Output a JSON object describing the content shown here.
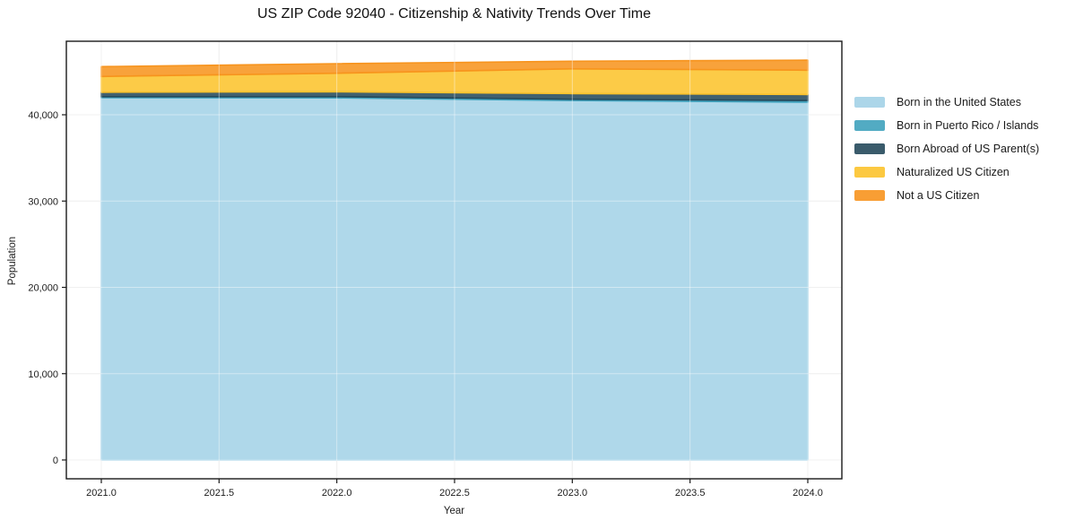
{
  "title": "US ZIP Code 92040 - Citizenship & Nativity Trends Over Time",
  "axes": {
    "xlabel": "Year",
    "ylabel": "Population",
    "xticks": {
      "values": [
        2021.0,
        2021.5,
        2022.0,
        2022.5,
        2023.0,
        2023.5,
        2024.0
      ],
      "labels": [
        "2021.0",
        "2021.5",
        "2022.0",
        "2022.5",
        "2023.0",
        "2023.5",
        "2024.0"
      ]
    },
    "yticks": {
      "values": [
        0,
        10000,
        20000,
        30000,
        40000
      ],
      "labels": [
        "0",
        "10,000",
        "20,000",
        "30,000",
        "40,000"
      ]
    }
  },
  "colors": {
    "grid": "#E1E1E1",
    "spine": "#1a1a1a",
    "tick_text": "#1c1c1c"
  },
  "chart_data": {
    "type": "area",
    "stacked": true,
    "title": "US ZIP Code 92040 - Citizenship & Nativity Trends Over Time",
    "xlabel": "Year",
    "ylabel": "Population",
    "x": [
      2021,
      2022,
      2023,
      2024
    ],
    "series": [
      {
        "name": "Born in the United States",
        "color": "#A3D2E7",
        "values": [
          41980,
          41950,
          41650,
          41450
        ]
      },
      {
        "name": "Born in Puerto Rico / Islands",
        "color": "#3FA2BD",
        "values": [
          120,
          150,
          150,
          200
        ]
      },
      {
        "name": "Born Abroad of US Parent(s)",
        "color": "#25495B",
        "values": [
          510,
          560,
          650,
          700
        ]
      },
      {
        "name": "Naturalized US Citizen",
        "color": "#FCC32C",
        "values": [
          1830,
          2150,
          2870,
          2810
        ]
      },
      {
        "name": "Not a US Citizen",
        "color": "#F7941E",
        "values": [
          1140,
          1110,
          880,
          1170
        ]
      }
    ],
    "totals": [
      45580,
      45920,
      46200,
      46330
    ],
    "xlim": [
      2020.85,
      2024.14
    ],
    "ylim": [
      -2182,
      48520
    ],
    "grid": true,
    "legend_position": "right"
  }
}
